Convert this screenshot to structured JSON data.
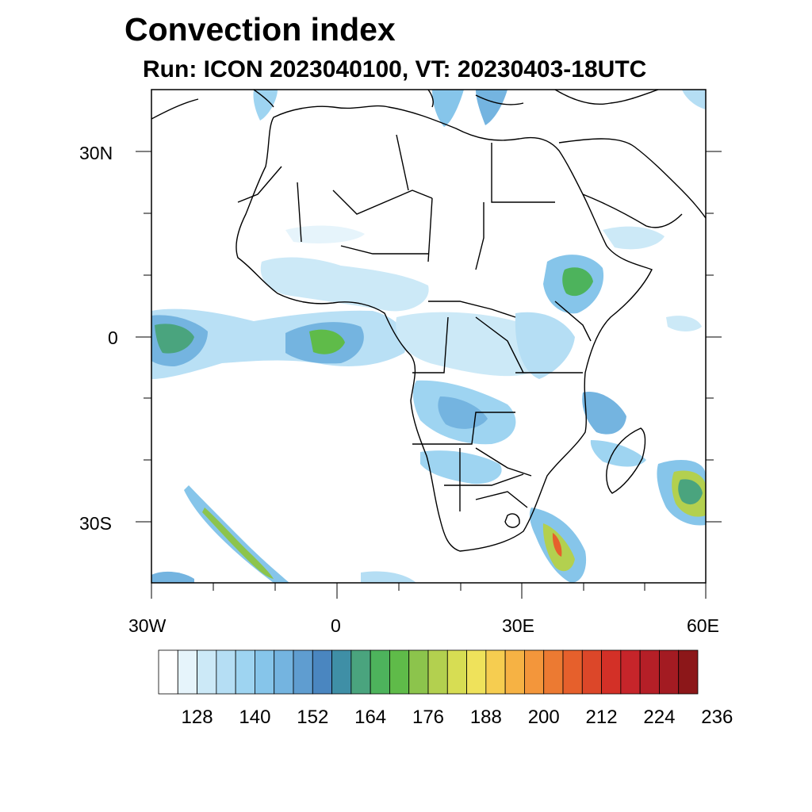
{
  "title": "Convection index",
  "subtitle": "Run: ICON 2023040100,  VT: 20230403-18UTC",
  "map": {
    "extent": {
      "lon_min": -30,
      "lon_max": 60,
      "lat_min": -40,
      "lat_max": 40
    },
    "lat_labels": [
      {
        "lat": 30,
        "text": "30N"
      },
      {
        "lat": 0,
        "text": "0"
      },
      {
        "lat": -30,
        "text": "30S"
      }
    ],
    "lon_labels": [
      {
        "lon": -30,
        "text": "30W"
      },
      {
        "lon": 0,
        "text": "0"
      },
      {
        "lon": 30,
        "text": "30E"
      },
      {
        "lon": 60,
        "text": "60E"
      }
    ]
  },
  "colorbar": {
    "colors": [
      "#ffffff",
      "#e6f4fb",
      "#cce9f7",
      "#b5def4",
      "#9ed4f1",
      "#86c5ea",
      "#74b4e0",
      "#5f9dd0",
      "#4a86c0",
      "#3f8fa6",
      "#4aa47e",
      "#4db35c",
      "#5fbb49",
      "#8cc44c",
      "#b3d04f",
      "#d7dd53",
      "#efe25b",
      "#f6cd50",
      "#f6b244",
      "#f3963b",
      "#ec7a32",
      "#e6602c",
      "#dc4729",
      "#d33027",
      "#c6252a",
      "#b51f27",
      "#a31b22",
      "#8c1719"
    ],
    "labels": [
      "128",
      "140",
      "152",
      "164",
      "176",
      "188",
      "200",
      "212",
      "224",
      "236"
    ]
  }
}
